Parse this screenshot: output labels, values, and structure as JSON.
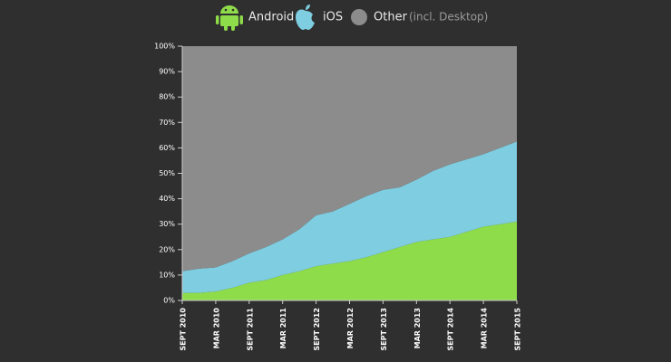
{
  "chart_data": {
    "type": "stacked-area",
    "legend_note": "(incl. Desktop)",
    "categories": [
      "SEPT 2010",
      null,
      "MAR 2010",
      null,
      "SEPT 2011",
      null,
      "MAR 2011",
      null,
      "SEPT 2012",
      null,
      "MAR 2012",
      null,
      "SEPT 2013",
      null,
      "MAR 2013",
      null,
      "SEPT 2014",
      null,
      "MAR 2014",
      null,
      "SEPT 2015"
    ],
    "series": [
      {
        "name": "Android",
        "color": "#8fdc4a",
        "values": [
          3,
          3,
          3.5,
          5,
          7,
          8,
          10,
          11.5,
          13.5,
          14.5,
          15.5,
          17,
          19,
          21,
          23,
          24,
          25,
          27,
          29,
          30,
          31
        ]
      },
      {
        "name": "iOS",
        "color": "#7ecde0",
        "values": [
          8.5,
          9.5,
          9.5,
          10.5,
          11.5,
          13,
          14,
          16.5,
          20,
          20.5,
          22.5,
          24,
          24.5,
          23.5,
          24.5,
          27,
          28.5,
          28.5,
          28.5,
          30,
          31.5
        ]
      },
      {
        "name": "Other",
        "color": "#8c8c8c",
        "values": [
          88.5,
          87.5,
          87,
          84.5,
          81.5,
          79,
          76,
          72,
          66.5,
          65,
          62,
          59,
          56.5,
          55.5,
          52.5,
          49,
          46.5,
          44.5,
          42.5,
          40,
          37.5
        ]
      }
    ],
    "ylim": [
      0,
      100
    ],
    "yticks": [
      {
        "value": 0,
        "label": "0%"
      },
      {
        "value": 10,
        "label": "10%"
      },
      {
        "value": 20,
        "label": "20%"
      },
      {
        "value": 30,
        "label": "30%"
      },
      {
        "value": 40,
        "label": "40%"
      },
      {
        "value": 50,
        "label": "50%"
      },
      {
        "value": 60,
        "label": "60%"
      },
      {
        "value": 70,
        "label": "70%"
      },
      {
        "value": 80,
        "label": "80%"
      },
      {
        "value": 90,
        "label": "90%"
      },
      {
        "value": 100,
        "label": "100%"
      }
    ]
  }
}
